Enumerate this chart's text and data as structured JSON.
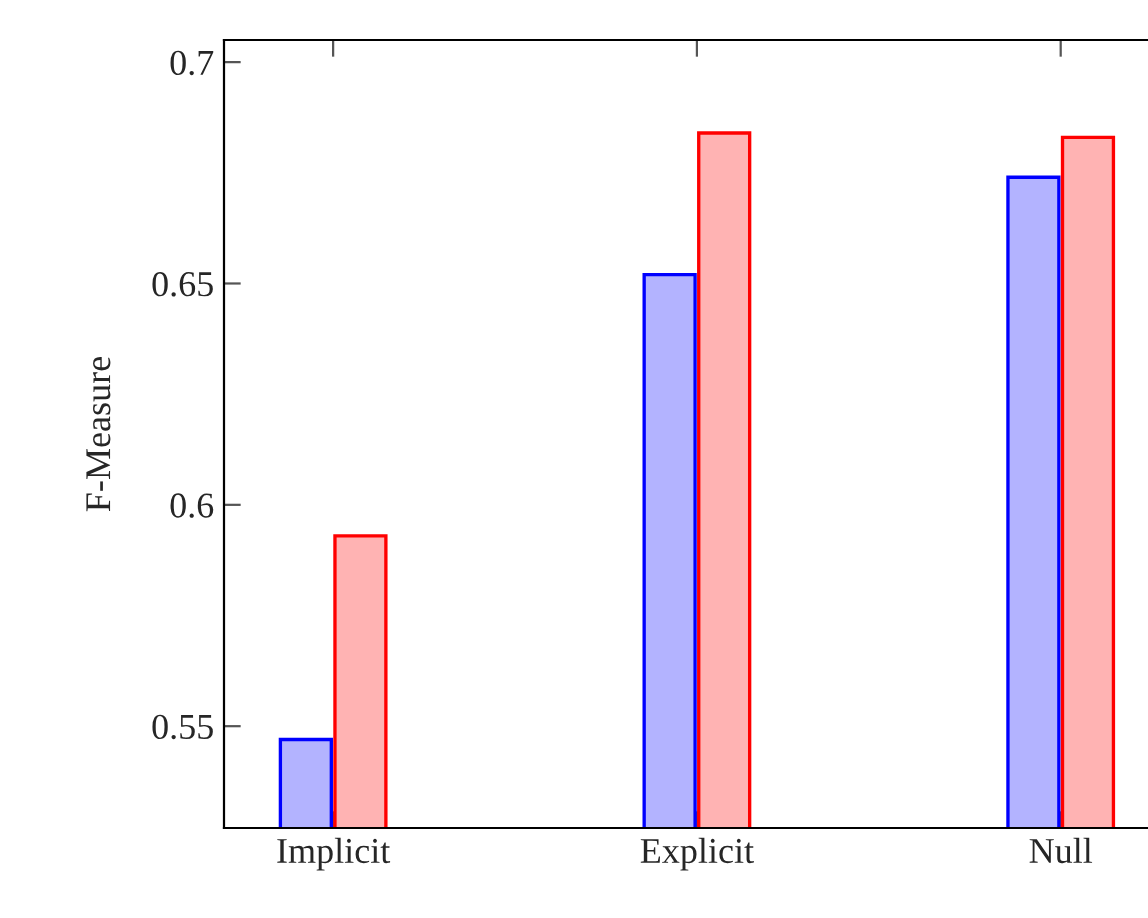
{
  "chart_data": {
    "type": "bar",
    "ylabel": "F-Measure",
    "categories": [
      "Implicit",
      "Explicit",
      "Null"
    ],
    "series": [
      {
        "color": "#b3b3ff",
        "values": [
          0.547,
          0.652,
          0.674
        ]
      },
      {
        "color": "#ffb3b3",
        "values": [
          0.593,
          0.684,
          0.683
        ]
      }
    ],
    "ylim": [
      0.527,
      0.705
    ],
    "yticks": [
      0.55,
      0.6,
      0.65,
      0.7
    ],
    "grid": false,
    "legend": false
  }
}
